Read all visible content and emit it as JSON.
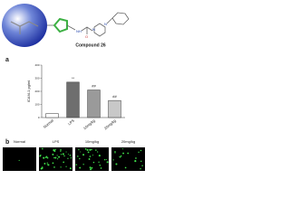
{
  "compound_label": "Compound 26",
  "panel_labels": [
    "a",
    "b"
  ],
  "chart_data": {
    "type": "bar",
    "y_label": "ICAM-1 pg/ml",
    "categories": [
      "Normal",
      "LPS",
      "10mg/kg",
      "20mg/kg"
    ],
    "values": [
      30,
      270,
      210,
      130
    ],
    "colors": [
      "#ffffff",
      "#6e6e6e",
      "#9a9a9a",
      "#c8c8c8"
    ],
    "annotations": [
      null,
      "**",
      "##",
      "##"
    ],
    "ylim": [
      0,
      400
    ],
    "yticks": [
      0,
      100,
      200,
      300,
      400
    ]
  },
  "image_labels": [
    "Normal",
    "LPS",
    "10mg/kg",
    "20mg/kg"
  ]
}
